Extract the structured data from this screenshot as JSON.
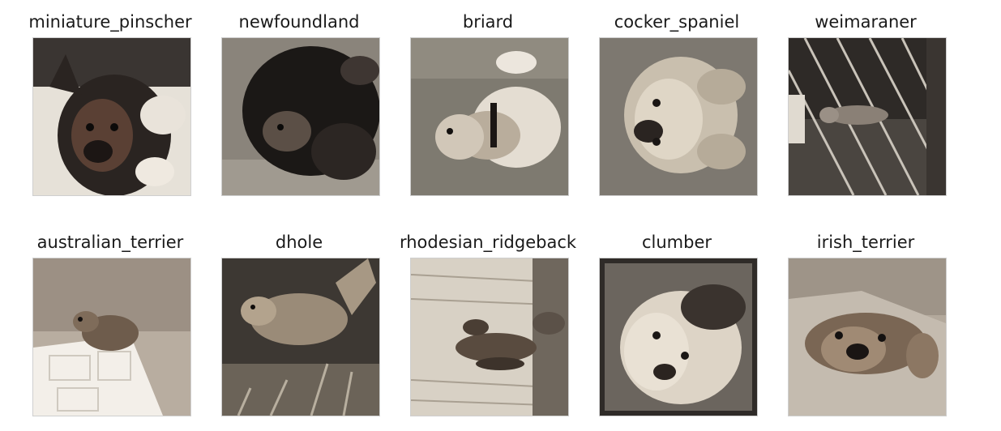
{
  "images": [
    {
      "label": "miniature_pinscher",
      "scene": "pinscher"
    },
    {
      "label": "newfoundland",
      "scene": "newfoundland"
    },
    {
      "label": "briard",
      "scene": "briard"
    },
    {
      "label": "cocker_spaniel",
      "scene": "cocker"
    },
    {
      "label": "weimaraner",
      "scene": "weimaraner"
    },
    {
      "label": "australian_terrier",
      "scene": "australian"
    },
    {
      "label": "dhole",
      "scene": "dhole"
    },
    {
      "label": "rhodesian_ridgeback",
      "scene": "ridgeback"
    },
    {
      "label": "clumber",
      "scene": "clumber"
    },
    {
      "label": "irish_terrier",
      "scene": "irish"
    }
  ]
}
